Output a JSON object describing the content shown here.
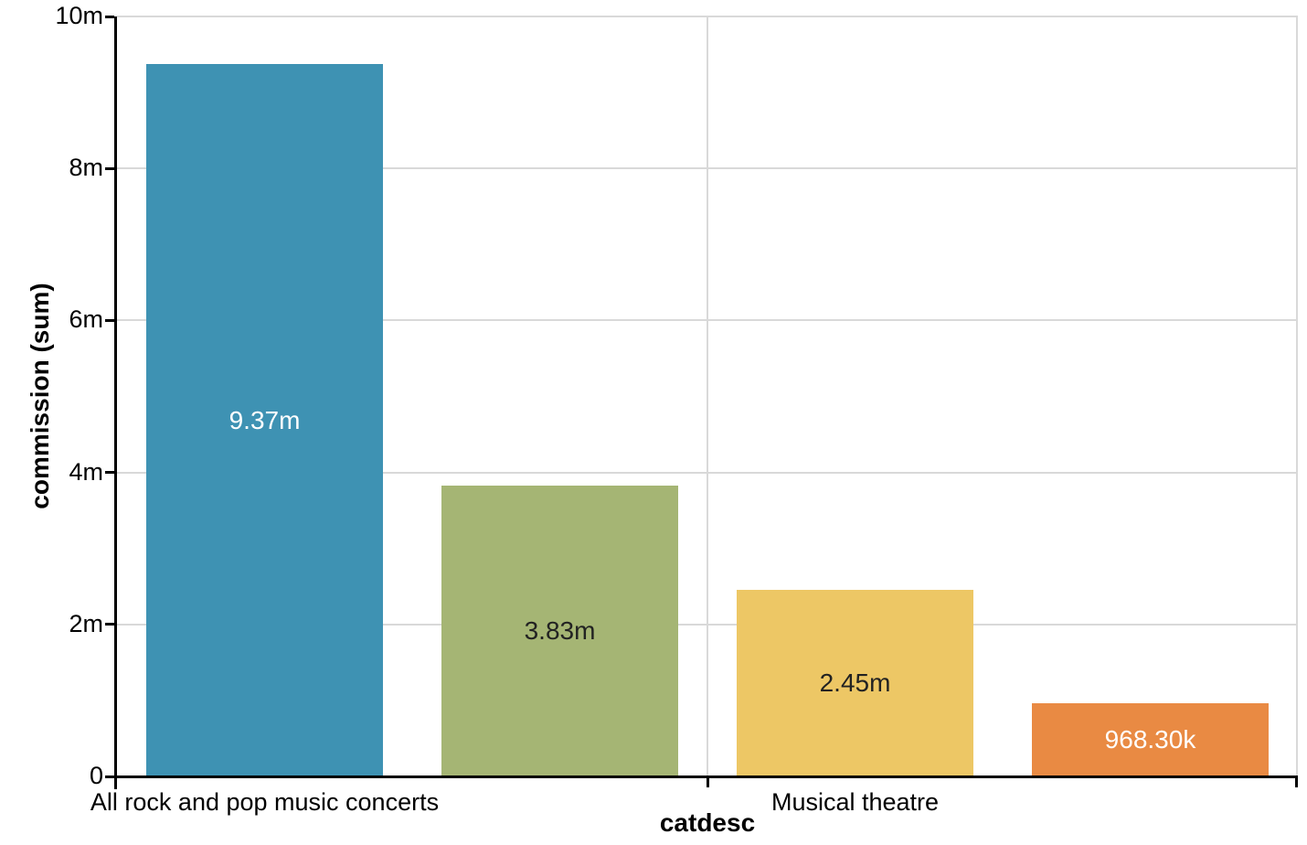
{
  "chart_data": {
    "type": "bar",
    "title": "",
    "xlabel": "catdesc",
    "ylabel": "commission (sum)",
    "ylim": [
      0,
      10000000
    ],
    "grid": true,
    "legend": "none",
    "y_ticks": [
      {
        "value": 0,
        "label": "0"
      },
      {
        "value": 2000000,
        "label": "2m"
      },
      {
        "value": 4000000,
        "label": "4m"
      },
      {
        "value": 6000000,
        "label": "6m"
      },
      {
        "value": 8000000,
        "label": "8m"
      },
      {
        "value": 10000000,
        "label": "10m"
      }
    ],
    "categories": [
      "All rock and pop music concerts",
      "Musical theatre"
    ],
    "bars": [
      {
        "category": "All rock and pop music concerts",
        "value": 9370000,
        "label": "9.37m",
        "color": "#3e92b3",
        "label_color": "#ffffff"
      },
      {
        "category": "All rock and pop music concerts",
        "value": 3830000,
        "label": "3.83m",
        "color": "#a5b574",
        "label_color": "#222222"
      },
      {
        "category": "Musical theatre",
        "value": 2450000,
        "label": "2.45m",
        "color": "#edc765",
        "label_color": "#222222"
      },
      {
        "category": "Musical theatre",
        "value": 968300,
        "label": "968.30k",
        "color": "#e98a43",
        "label_color": "#ffffff"
      }
    ],
    "colors": {
      "grid": "#d9d9d9",
      "domain": "#000000",
      "tick": "#000000",
      "background": "#ffffff"
    }
  }
}
